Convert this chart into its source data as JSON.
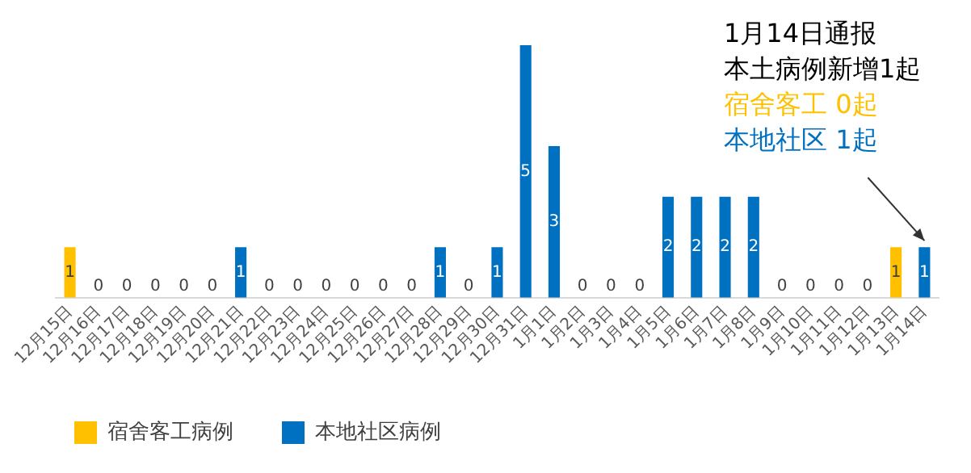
{
  "chart_data": {
    "type": "bar",
    "stacked": true,
    "categories": [
      "12月15日",
      "12月16日",
      "12月17日",
      "12月18日",
      "12月19日",
      "12月20日",
      "12月21日",
      "12月22日",
      "12月23日",
      "12月24日",
      "12月25日",
      "12月26日",
      "12月27日",
      "12月28日",
      "12月29日",
      "12月30日",
      "12月31日",
      "1月1日",
      "1月2日",
      "1月3日",
      "1月4日",
      "1月5日",
      "1月6日",
      "1月7日",
      "1月8日",
      "1月9日",
      "1月10日",
      "1月11日",
      "1月12日",
      "1月13日",
      "1月14日"
    ],
    "series": [
      {
        "name": "宿舍客工病例",
        "color": "#ffc000",
        "values": [
          1,
          0,
          0,
          0,
          0,
          0,
          0,
          0,
          0,
          0,
          0,
          0,
          0,
          0,
          0,
          0,
          0,
          0,
          0,
          0,
          0,
          0,
          0,
          0,
          0,
          0,
          0,
          0,
          0,
          1,
          0
        ],
        "value_labels": [
          "1",
          "0",
          "0",
          "0",
          "0",
          "0",
          null,
          "0",
          "0",
          "0",
          "0",
          "0",
          "0",
          null,
          "0",
          null,
          null,
          null,
          "0",
          "0",
          "0",
          null,
          null,
          null,
          null,
          "0",
          "0",
          "0",
          "0",
          "1",
          null
        ]
      },
      {
        "name": "本地社区病例",
        "color": "#0070c0",
        "values": [
          0,
          0,
          0,
          0,
          0,
          0,
          1,
          0,
          0,
          0,
          0,
          0,
          0,
          1,
          0,
          1,
          5,
          3,
          0,
          0,
          0,
          2,
          2,
          2,
          2,
          0,
          0,
          0,
          0,
          0,
          1
        ],
        "value_labels": [
          null,
          null,
          null,
          null,
          null,
          null,
          "1",
          null,
          null,
          null,
          null,
          null,
          null,
          "1",
          null,
          "1",
          "5",
          "3",
          null,
          null,
          null,
          "2",
          "2",
          "2",
          "2",
          null,
          null,
          null,
          null,
          null,
          "1"
        ]
      }
    ],
    "legend": "bottom left",
    "grid": false,
    "annotations": [
      "1月14日通报",
      "本土病例新增1起",
      "宿舍客工 0起",
      {
        "text": "本地社区 1起",
        "x": "1月14日",
        "y": 1
      }
    ]
  }
}
